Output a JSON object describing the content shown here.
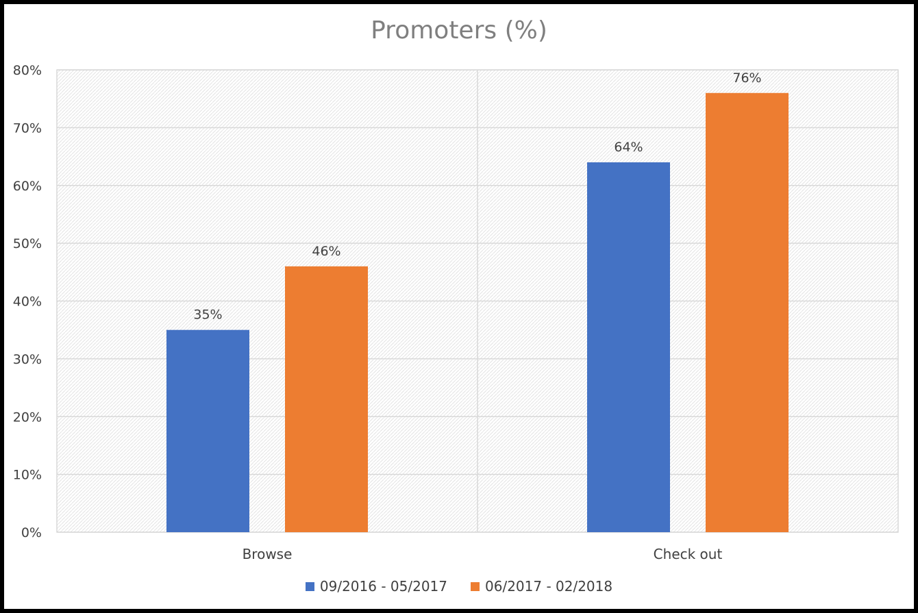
{
  "colors": {
    "series1": "#4472c4",
    "series2": "#ed7d31",
    "grid": "#d9d9d9",
    "text": "#404040",
    "title": "#7f7f7f"
  },
  "chart_data": {
    "type": "bar",
    "title": "Promoters (%)",
    "xlabel": "",
    "ylabel": "",
    "categories": [
      "Browse",
      "Check out"
    ],
    "series": [
      {
        "name": "09/2016 - 05/2017",
        "values": [
          35,
          64
        ],
        "labels": [
          "35%",
          "64%"
        ]
      },
      {
        "name": "06/2017 - 02/2018",
        "values": [
          46,
          76
        ],
        "labels": [
          "46%",
          "76%"
        ]
      }
    ],
    "ylim": [
      0,
      80
    ],
    "yticks": [
      "0%",
      "10%",
      "20%",
      "30%",
      "40%",
      "50%",
      "60%",
      "70%",
      "80%"
    ],
    "grid": true,
    "legend_position": "bottom"
  }
}
